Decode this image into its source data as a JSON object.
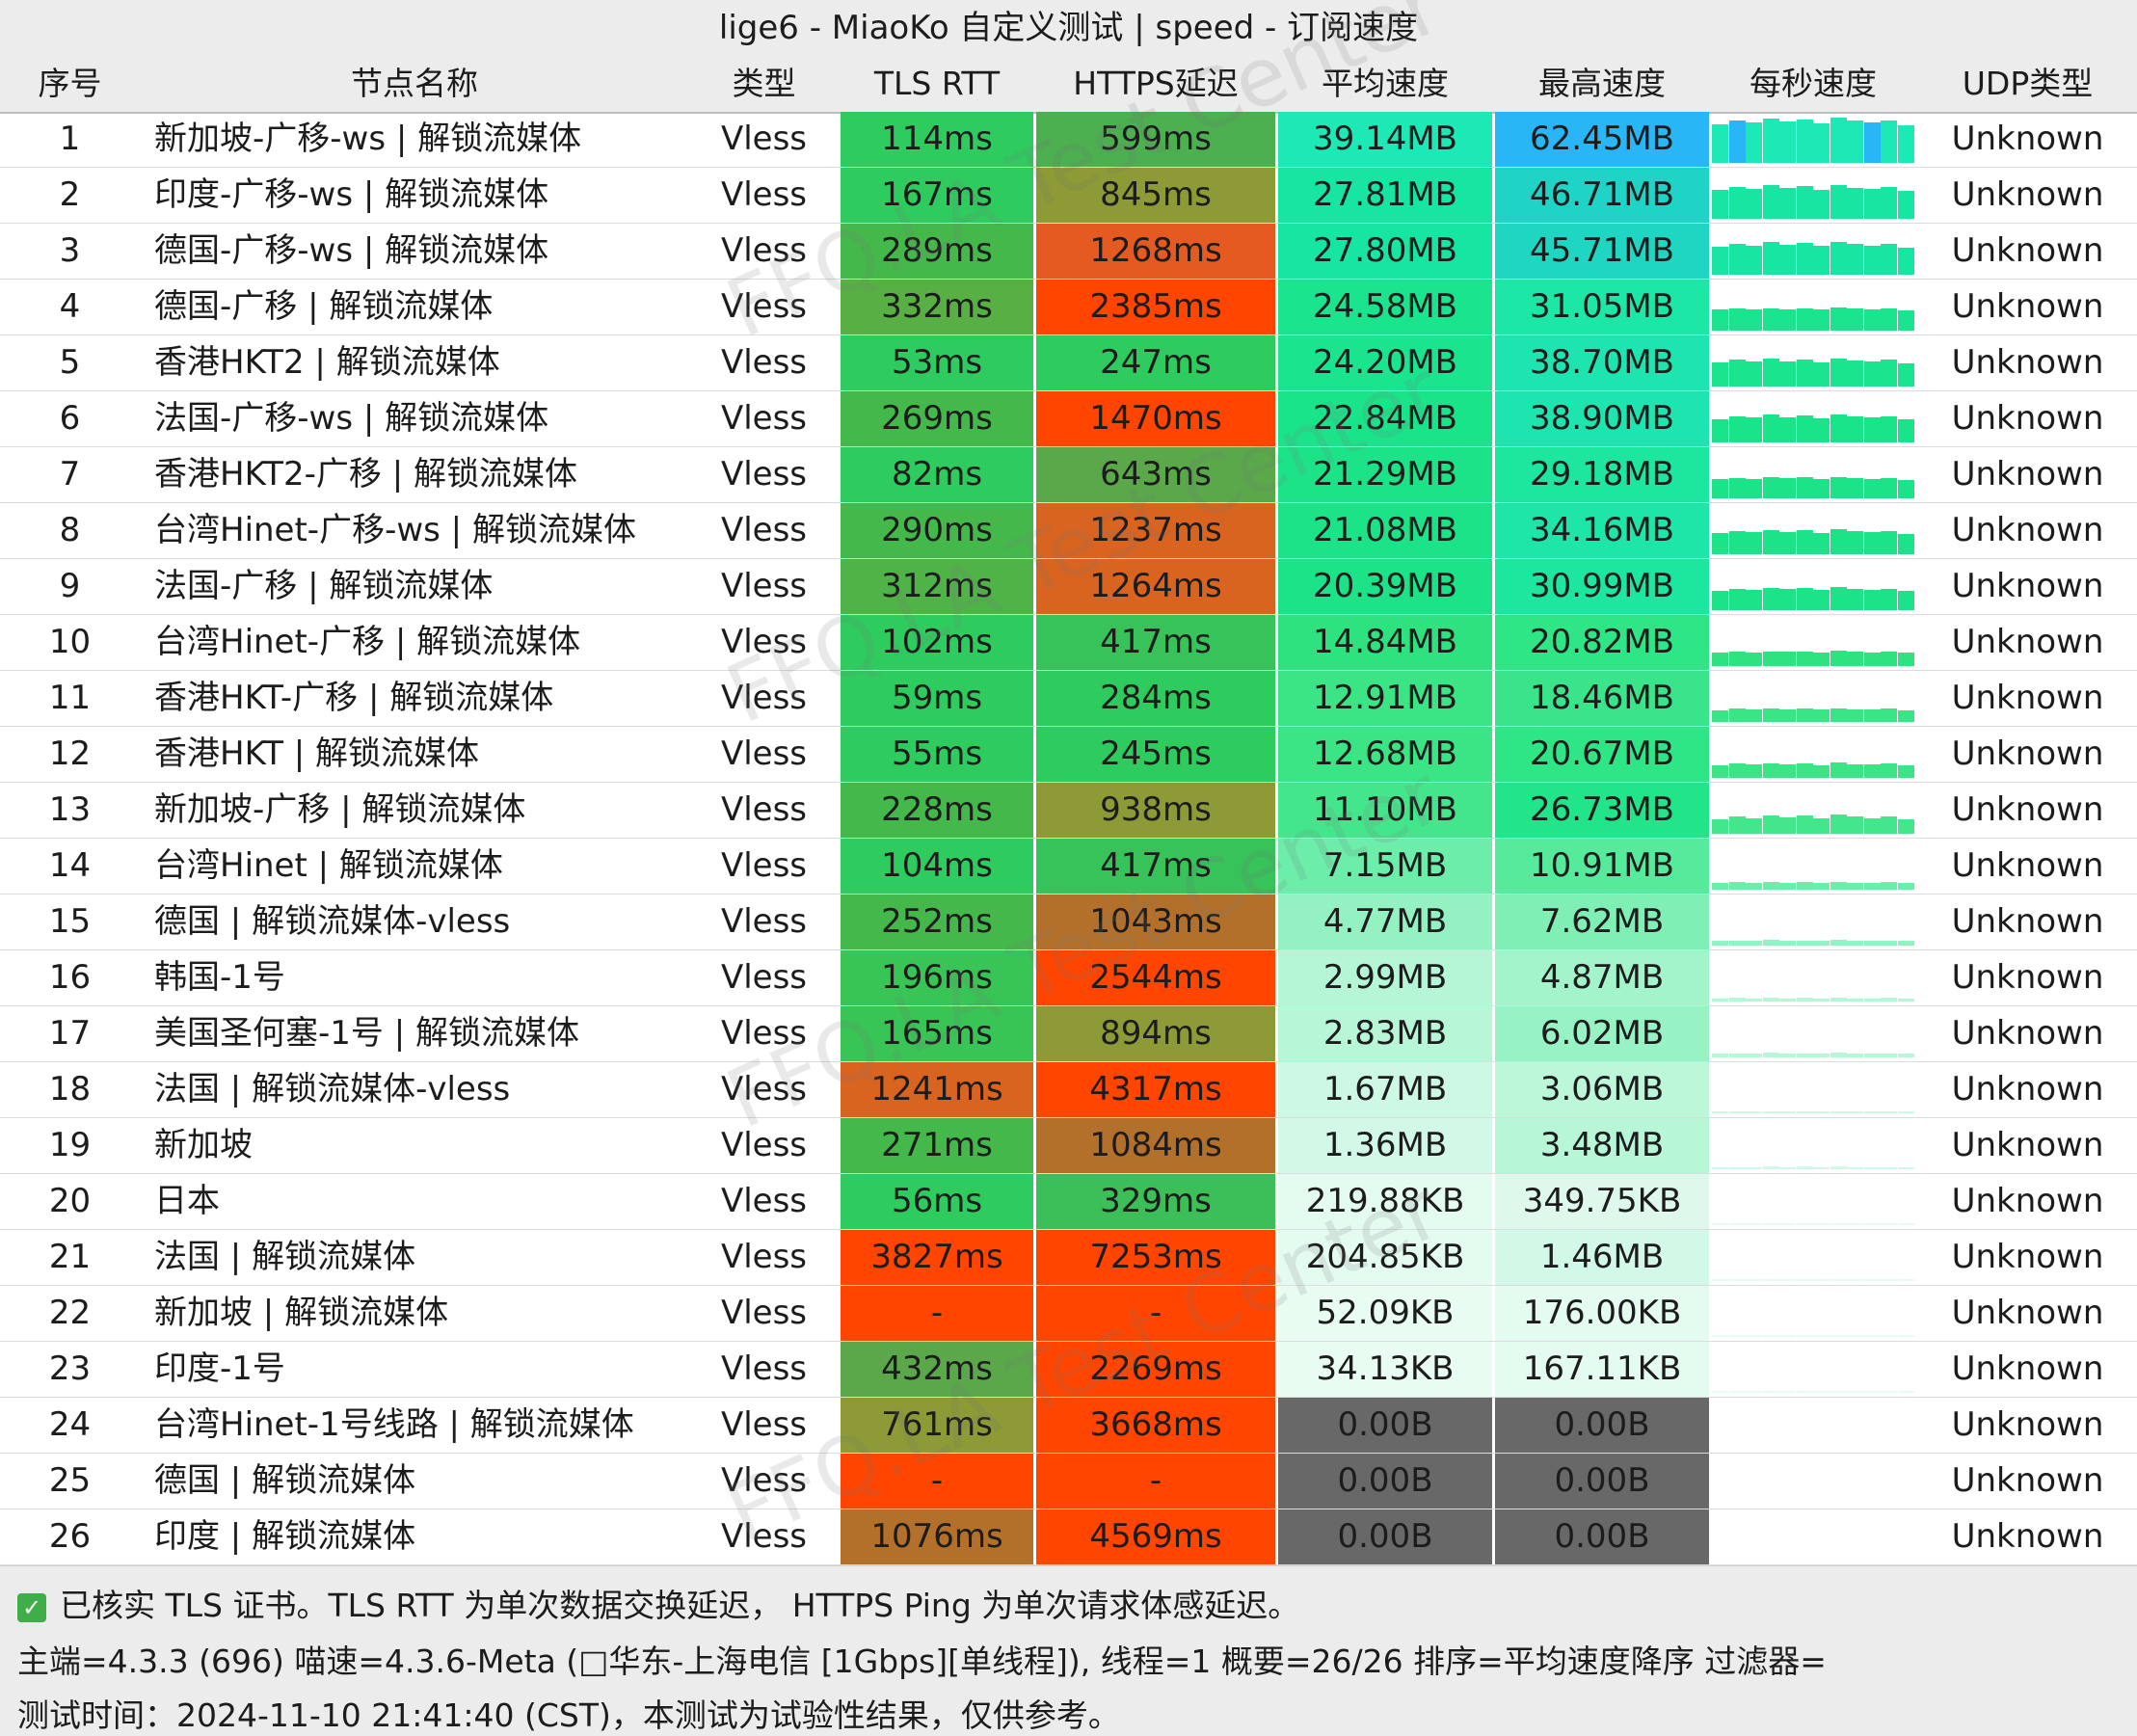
{
  "title": "lige6 - MiaoKo 自定义测试 | speed - 订阅速度",
  "columns": {
    "index": "序号",
    "name": "节点名称",
    "type": "类型",
    "tls_rtt": "TLS RTT",
    "https_delay": "HTTPS延迟",
    "avg_speed": "平均速度",
    "max_speed": "最高速度",
    "per_sec": "每秒速度",
    "udp": "UDP类型"
  },
  "rows": [
    {
      "index": "1",
      "name": "新加坡-广移-ws | 解锁流媒体",
      "type": "Vless",
      "tls": "114ms",
      "https": "599ms",
      "avg": "39.14MB",
      "max": "62.45MB",
      "udp": "Unknown",
      "tls_color": "#2ecc5e",
      "https_color": "#4caf50",
      "avg_color": "#1de9b6",
      "max_color": "#29b6f6",
      "avg_level": 0.63,
      "max_level": 1.0
    },
    {
      "index": "2",
      "name": "印度-广移-ws | 解锁流媒体",
      "type": "Vless",
      "tls": "167ms",
      "https": "845ms",
      "avg": "27.81MB",
      "max": "46.71MB",
      "udp": "Unknown",
      "tls_color": "#2ecc5e",
      "https_color": "#8d9a36",
      "avg_color": "#17e6a2",
      "max_color": "#1fd3c6",
      "avg_level": 0.45,
      "max_level": 0.75
    },
    {
      "index": "3",
      "name": "德国-广移-ws | 解锁流媒体",
      "type": "Vless",
      "tls": "289ms",
      "https": "1268ms",
      "avg": "27.80MB",
      "max": "45.71MB",
      "udp": "Unknown",
      "tls_color": "#44b84a",
      "https_color": "#e45a20",
      "avg_color": "#17e6a2",
      "max_color": "#1fd6c2",
      "avg_level": 0.45,
      "max_level": 0.73
    },
    {
      "index": "4",
      "name": "德国-广移 | 解锁流媒体",
      "type": "Vless",
      "tls": "332ms",
      "https": "2385ms",
      "avg": "24.58MB",
      "max": "31.05MB",
      "udp": "Unknown",
      "tls_color": "#58b045",
      "https_color": "#ff4500",
      "avg_color": "#1ae48e",
      "max_color": "#1de7a6",
      "avg_level": 0.39,
      "max_level": 0.5
    },
    {
      "index": "5",
      "name": "香港HKT2 | 解锁流媒体",
      "type": "Vless",
      "tls": "53ms",
      "https": "247ms",
      "avg": "24.20MB",
      "max": "38.70MB",
      "udp": "Unknown",
      "tls_color": "#2ecc5e",
      "https_color": "#2ecc5e",
      "avg_color": "#1ae48e",
      "max_color": "#1ee5b0",
      "avg_level": 0.39,
      "max_level": 0.62
    },
    {
      "index": "6",
      "name": "法国-广移-ws | 解锁流媒体",
      "type": "Vless",
      "tls": "269ms",
      "https": "1470ms",
      "avg": "22.84MB",
      "max": "38.90MB",
      "udp": "Unknown",
      "tls_color": "#44b84a",
      "https_color": "#ff4500",
      "avg_color": "#1ae48a",
      "max_color": "#1ee5b0",
      "avg_level": 0.37,
      "max_level": 0.62
    },
    {
      "index": "7",
      "name": "香港HKT2-广移 | 解锁流媒体",
      "type": "Vless",
      "tls": "82ms",
      "https": "643ms",
      "avg": "21.29MB",
      "max": "29.18MB",
      "udp": "Unknown",
      "tls_color": "#2ecc5e",
      "https_color": "#5aa84a",
      "avg_color": "#1de388",
      "max_color": "#1de69e",
      "avg_level": 0.34,
      "max_level": 0.47
    },
    {
      "index": "8",
      "name": "台湾Hinet-广移-ws | 解锁流媒体",
      "type": "Vless",
      "tls": "290ms",
      "https": "1237ms",
      "avg": "21.08MB",
      "max": "34.16MB",
      "udp": "Unknown",
      "tls_color": "#44b84a",
      "https_color": "#d8641f",
      "avg_color": "#1de388",
      "max_color": "#1de6a8",
      "avg_level": 0.34,
      "max_level": 0.55
    },
    {
      "index": "9",
      "name": "法国-广移 | 解锁流媒体",
      "type": "Vless",
      "tls": "312ms",
      "https": "1264ms",
      "avg": "20.39MB",
      "max": "30.99MB",
      "udp": "Unknown",
      "tls_color": "#4fb347",
      "https_color": "#d8641f",
      "avg_color": "#1de388",
      "max_color": "#1de69e",
      "avg_level": 0.33,
      "max_level": 0.5
    },
    {
      "index": "10",
      "name": "台湾Hinet-广移 | 解锁流媒体",
      "type": "Vless",
      "tls": "102ms",
      "https": "417ms",
      "avg": "14.84MB",
      "max": "20.82MB",
      "udp": "Unknown",
      "tls_color": "#2ecc5e",
      "https_color": "#37c25a",
      "avg_color": "#2ee27f",
      "max_color": "#2ee686",
      "avg_level": 0.24,
      "max_level": 0.33
    },
    {
      "index": "11",
      "name": "香港HKT-广移 | 解锁流媒体",
      "type": "Vless",
      "tls": "59ms",
      "https": "284ms",
      "avg": "12.91MB",
      "max": "18.46MB",
      "udp": "Unknown",
      "tls_color": "#2ecc5e",
      "https_color": "#2ecc5e",
      "avg_color": "#3be585",
      "max_color": "#3ae48b",
      "avg_level": 0.21,
      "max_level": 0.3
    },
    {
      "index": "12",
      "name": "香港HKT | 解锁流媒体",
      "type": "Vless",
      "tls": "55ms",
      "https": "245ms",
      "avg": "12.68MB",
      "max": "20.67MB",
      "udp": "Unknown",
      "tls_color": "#2ecc5e",
      "https_color": "#2ecc5e",
      "avg_color": "#3be585",
      "max_color": "#2ee686",
      "avg_level": 0.2,
      "max_level": 0.33
    },
    {
      "index": "13",
      "name": "新加坡-广移 | 解锁流媒体",
      "type": "Vless",
      "tls": "228ms",
      "https": "938ms",
      "avg": "11.10MB",
      "max": "26.73MB",
      "udp": "Unknown",
      "tls_color": "#44b84a",
      "https_color": "#8d9a36",
      "avg_color": "#44e68c",
      "max_color": "#22e58a",
      "avg_level": 0.18,
      "max_level": 0.43
    },
    {
      "index": "14",
      "name": "台湾Hinet | 解锁流媒体",
      "type": "Vless",
      "tls": "104ms",
      "https": "417ms",
      "avg": "7.15MB",
      "max": "10.91MB",
      "udp": "Unknown",
      "tls_color": "#2ecc5e",
      "https_color": "#37c25a",
      "avg_color": "#6cedaa",
      "max_color": "#55ea9c",
      "avg_level": 0.11,
      "max_level": 0.17
    },
    {
      "index": "15",
      "name": "德国 | 解锁流媒体-vless",
      "type": "Vless",
      "tls": "252ms",
      "https": "1043ms",
      "avg": "4.77MB",
      "max": "7.62MB",
      "udp": "Unknown",
      "tls_color": "#44b84a",
      "https_color": "#b3702a",
      "avg_color": "#94f2c2",
      "max_color": "#80efb6",
      "avg_level": 0.08,
      "max_level": 0.12
    },
    {
      "index": "16",
      "name": "韩国-1号",
      "type": "Vless",
      "tls": "196ms",
      "https": "2544ms",
      "avg": "2.99MB",
      "max": "4.87MB",
      "udp": "Unknown",
      "tls_color": "#38c555",
      "https_color": "#ff4500",
      "avg_color": "#b5f6d6",
      "max_color": "#a3f4cb",
      "avg_level": 0.05,
      "max_level": 0.08
    },
    {
      "index": "17",
      "name": "美国圣何塞-1号 | 解锁流媒体",
      "type": "Vless",
      "tls": "165ms",
      "https": "894ms",
      "avg": "2.83MB",
      "max": "6.02MB",
      "udp": "Unknown",
      "tls_color": "#38c555",
      "https_color": "#8d9a36",
      "avg_color": "#b8f6d8",
      "max_color": "#98f3c4",
      "avg_level": 0.05,
      "max_level": 0.1
    },
    {
      "index": "18",
      "name": "法国 | 解锁流媒体-vless",
      "type": "Vless",
      "tls": "1241ms",
      "https": "4317ms",
      "avg": "1.67MB",
      "max": "3.06MB",
      "udp": "Unknown",
      "tls_color": "#d8641f",
      "https_color": "#ff4500",
      "avg_color": "#cdf8e4",
      "max_color": "#bcf7da",
      "avg_level": 0.03,
      "max_level": 0.05
    },
    {
      "index": "19",
      "name": "新加坡",
      "type": "Vless",
      "tls": "271ms",
      "https": "1084ms",
      "avg": "1.36MB",
      "max": "3.48MB",
      "udp": "Unknown",
      "tls_color": "#44b84a",
      "https_color": "#b3702a",
      "avg_color": "#d2f9e7",
      "max_color": "#b8f6d8",
      "avg_level": 0.02,
      "max_level": 0.06
    },
    {
      "index": "20",
      "name": "日本",
      "type": "Vless",
      "tls": "56ms",
      "https": "329ms",
      "avg": "219.88KB",
      "max": "349.75KB",
      "udp": "Unknown",
      "tls_color": "#2ecc5e",
      "https_color": "#3cbf58",
      "avg_color": "#e4fbf0",
      "max_color": "#def9ec",
      "avg_level": 0.003,
      "max_level": 0.005
    },
    {
      "index": "21",
      "name": "法国 | 解锁流媒体",
      "type": "Vless",
      "tls": "3827ms",
      "https": "7253ms",
      "avg": "204.85KB",
      "max": "1.46MB",
      "udp": "Unknown",
      "tls_color": "#ff4500",
      "https_color": "#ff4500",
      "avg_color": "#e4fbf0",
      "max_color": "#d2f9e7",
      "avg_level": 0.003,
      "max_level": 0.02
    },
    {
      "index": "22",
      "name": "新加坡 | 解锁流媒体",
      "type": "Vless",
      "tls": "-",
      "https": "-",
      "avg": "52.09KB",
      "max": "176.00KB",
      "udp": "Unknown",
      "tls_color": "#ff4500",
      "https_color": "#ff4500",
      "avg_color": "#e8fcf2",
      "max_color": "#e4fbf0",
      "avg_level": 0.001,
      "max_level": 0.003
    },
    {
      "index": "23",
      "name": "印度-1号",
      "type": "Vless",
      "tls": "432ms",
      "https": "2269ms",
      "avg": "34.13KB",
      "max": "167.11KB",
      "udp": "Unknown",
      "tls_color": "#5aa84a",
      "https_color": "#ff4500",
      "avg_color": "#e8fcf2",
      "max_color": "#e4fbf0",
      "avg_level": 0.001,
      "max_level": 0.003
    },
    {
      "index": "24",
      "name": "台湾Hinet-1号线路 | 解锁流媒体",
      "type": "Vless",
      "tls": "761ms",
      "https": "3668ms",
      "avg": "0.00B",
      "max": "0.00B",
      "udp": "Unknown",
      "tls_color": "#8d9a36",
      "https_color": "#ff4500",
      "avg_color": "#686868",
      "max_color": "#686868",
      "avg_level": 0,
      "max_level": 0
    },
    {
      "index": "25",
      "name": "德国 | 解锁流媒体",
      "type": "Vless",
      "tls": "-",
      "https": "-",
      "avg": "0.00B",
      "max": "0.00B",
      "udp": "Unknown",
      "tls_color": "#ff4500",
      "https_color": "#ff4500",
      "avg_color": "#686868",
      "max_color": "#686868",
      "avg_level": 0,
      "max_level": 0
    },
    {
      "index": "26",
      "name": "印度 | 解锁流媒体",
      "type": "Vless",
      "tls": "1076ms",
      "https": "4569ms",
      "avg": "0.00B",
      "max": "0.00B",
      "udp": "Unknown",
      "tls_color": "#b3702a",
      "https_color": "#ff4500",
      "avg_color": "#686868",
      "max_color": "#686868",
      "avg_level": 0,
      "max_level": 0
    }
  ],
  "footer": {
    "note": "已核实 TLS 证书。TLS RTT 为单次数据交换延迟， HTTPS Ping 为单次请求体感延迟。",
    "info": "主端=4.3.3 (696) 喵速=4.3.6-Meta (□华东-上海电信 [1Gbps][单线程]), 线程=1 概要=26/26 排序=平均速度降序 过滤器=",
    "time": "测试时间：2024-11-10 21:41:40 (CST)，本测试为试验性结果，仅供参考。"
  },
  "watermark": "FFQ.LA Test Center",
  "icons": {
    "check": "check-icon"
  }
}
